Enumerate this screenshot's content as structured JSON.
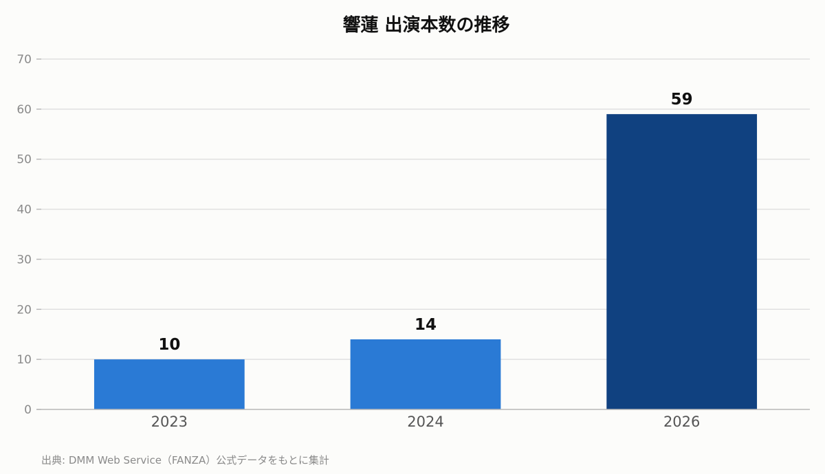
{
  "chart_data": {
    "type": "bar",
    "title": "響蓮 出演本数の推移",
    "categories": [
      "2023",
      "2024",
      "2026"
    ],
    "values": [
      10,
      14,
      59
    ],
    "data_labels": [
      "10",
      "14",
      "59"
    ],
    "ylim": [
      0,
      70
    ],
    "yticks": [
      0,
      10,
      20,
      30,
      40,
      50,
      60,
      70
    ],
    "xlabel": "",
    "ylabel": "",
    "grid": true,
    "bar_colors": [
      "#2a7ad5",
      "#2a7ad5",
      "#104180"
    ],
    "gridline_color": "#e0e0e0",
    "axis_color": "#b8b8b8"
  },
  "source_note": "出典: DMM Web Service（FANZA）公式データをもとに集計"
}
